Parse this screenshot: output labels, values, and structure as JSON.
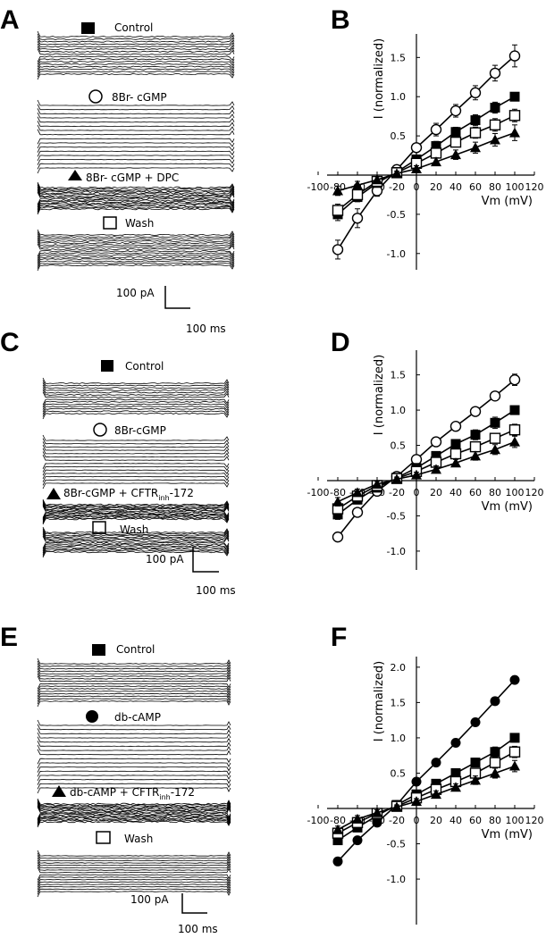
{
  "colors": {
    "ink": "#000000",
    "paper": "#ffffff"
  },
  "panels": {
    "A": {
      "letter": "A",
      "conditions": [
        {
          "label": "Control",
          "marker": "square-filled"
        },
        {
          "label": "8Br- cGMP",
          "marker": "circle-open"
        },
        {
          "label": "8Br- cGMP + DPC",
          "marker": "triangle-filled"
        },
        {
          "label": "Wash",
          "marker": "square-open"
        }
      ],
      "scale_bar": {
        "y_label": "100 pA",
        "x_label": "100 ms"
      }
    },
    "C": {
      "letter": "C",
      "conditions": [
        {
          "label": "Control",
          "marker": "square-filled"
        },
        {
          "label": "8Br-cGMP",
          "marker": "circle-open"
        },
        {
          "label": "8Br-cGMP + CFTR",
          "label_sub": "inh",
          "label_tail": "-172",
          "marker": "triangle-filled"
        },
        {
          "label": "Wash",
          "marker": "square-open"
        }
      ],
      "scale_bar": {
        "y_label": "100 pA",
        "x_label": "100 ms"
      }
    },
    "E": {
      "letter": "E",
      "conditions": [
        {
          "label": "Control",
          "marker": "square-filled"
        },
        {
          "label": "db-cAMP",
          "marker": "circle-filled"
        },
        {
          "label": "db-cAMP + CFTR",
          "label_sub": "inh",
          "label_tail": "-172",
          "marker": "triangle-filled"
        },
        {
          "label": "Wash",
          "marker": "square-open"
        }
      ],
      "scale_bar": {
        "y_label": "100 pA",
        "x_label": "100 ms"
      }
    }
  },
  "chart_data": [
    {
      "panel": "B",
      "type": "line",
      "xlabel": "Vm (mV)",
      "ylabel": "I (normalized)",
      "xticks": [
        -100,
        -80,
        -60,
        -40,
        -20,
        0,
        20,
        40,
        60,
        80,
        100,
        120
      ],
      "yticks": [
        -1.0,
        -0.5,
        0,
        0.5,
        1.0,
        1.5
      ],
      "xlim": [
        -100,
        120
      ],
      "ylim": [
        -1.35,
        1.8
      ],
      "x": [
        -80,
        -60,
        -40,
        -20,
        0,
        20,
        40,
        60,
        80,
        100
      ],
      "series": [
        {
          "marker": "circle-open",
          "values": [
            -0.95,
            -0.55,
            -0.2,
            0.07,
            0.35,
            0.58,
            0.82,
            1.05,
            1.3,
            1.52
          ],
          "errors": [
            0.12,
            0.12,
            0.07,
            0.04,
            0.05,
            0.08,
            0.08,
            0.09,
            0.1,
            0.14
          ]
        },
        {
          "marker": "square-filled",
          "values": [
            -0.5,
            -0.28,
            -0.1,
            0.04,
            0.2,
            0.37,
            0.55,
            0.7,
            0.86,
            1.0
          ],
          "errors": [
            0.08,
            0.06,
            0.04,
            0.03,
            0.05,
            0.06,
            0.06,
            0.07,
            0.07,
            0.05
          ]
        },
        {
          "marker": "square-open",
          "values": [
            -0.45,
            -0.25,
            -0.08,
            0.03,
            0.15,
            0.28,
            0.42,
            0.54,
            0.64,
            0.76
          ],
          "errors": [
            0.08,
            0.06,
            0.04,
            0.03,
            0.05,
            0.06,
            0.06,
            0.07,
            0.08,
            0.08
          ]
        },
        {
          "marker": "triangle-filled",
          "values": [
            -0.2,
            -0.13,
            -0.06,
            0.02,
            0.08,
            0.17,
            0.26,
            0.35,
            0.45,
            0.54
          ],
          "errors": [
            0.06,
            0.05,
            0.04,
            0.03,
            0.04,
            0.05,
            0.06,
            0.07,
            0.08,
            0.1
          ]
        }
      ]
    },
    {
      "panel": "D",
      "type": "line",
      "xlabel": "Vm (mV)",
      "ylabel": "I (normalized)",
      "xticks": [
        -100,
        -80,
        -60,
        -40,
        -20,
        0,
        20,
        40,
        60,
        80,
        100,
        120
      ],
      "yticks": [
        -1.0,
        -0.5,
        0,
        0.5,
        1.0,
        1.5
      ],
      "xlim": [
        -100,
        120
      ],
      "ylim": [
        -1.25,
        1.85
      ],
      "x": [
        -80,
        -60,
        -40,
        -20,
        0,
        20,
        40,
        60,
        80,
        100
      ],
      "series": [
        {
          "marker": "circle-open",
          "values": [
            -0.8,
            -0.45,
            -0.15,
            0.06,
            0.3,
            0.55,
            0.77,
            0.98,
            1.2,
            1.43
          ],
          "errors": [
            0.05,
            0.05,
            0.04,
            0.03,
            0.04,
            0.05,
            0.05,
            0.05,
            0.06,
            0.08
          ]
        },
        {
          "marker": "square-filled",
          "values": [
            -0.48,
            -0.27,
            -0.1,
            0.04,
            0.18,
            0.35,
            0.52,
            0.65,
            0.82,
            1.0
          ],
          "errors": [
            0.07,
            0.06,
            0.04,
            0.03,
            0.04,
            0.05,
            0.06,
            0.07,
            0.08,
            0.05
          ]
        },
        {
          "marker": "square-open",
          "values": [
            -0.4,
            -0.22,
            -0.07,
            0.03,
            0.13,
            0.26,
            0.38,
            0.48,
            0.6,
            0.72
          ],
          "errors": [
            0.07,
            0.06,
            0.04,
            0.03,
            0.04,
            0.05,
            0.06,
            0.06,
            0.07,
            0.08
          ]
        },
        {
          "marker": "triangle-filled",
          "values": [
            -0.3,
            -0.17,
            -0.05,
            0.02,
            0.08,
            0.16,
            0.25,
            0.35,
            0.44,
            0.55
          ],
          "errors": [
            0.06,
            0.05,
            0.04,
            0.03,
            0.04,
            0.05,
            0.05,
            0.06,
            0.07,
            0.08
          ]
        }
      ]
    },
    {
      "panel": "F",
      "type": "line",
      "xlabel": "Vm (mV)",
      "ylabel": "I (normalized)",
      "xticks": [
        -100,
        -80,
        -60,
        -40,
        -20,
        0,
        20,
        40,
        60,
        80,
        100,
        120
      ],
      "yticks": [
        -1.0,
        -0.5,
        0,
        0.5,
        1.0,
        1.5,
        2.0
      ],
      "xlim": [
        -100,
        120
      ],
      "ylim": [
        -1.3,
        2.15
      ],
      "x": [
        -80,
        -60,
        -40,
        -20,
        0,
        20,
        40,
        60,
        80,
        100
      ],
      "series": [
        {
          "marker": "circle-filled",
          "values": [
            -0.75,
            -0.45,
            -0.2,
            0.05,
            0.38,
            0.65,
            0.93,
            1.22,
            1.52,
            1.82
          ],
          "errors": [
            0.04,
            0.04,
            0.03,
            0.03,
            0.03,
            0.03,
            0.03,
            0.03,
            0.03,
            0.04
          ]
        },
        {
          "marker": "square-filled",
          "values": [
            -0.45,
            -0.27,
            -0.1,
            0.05,
            0.2,
            0.35,
            0.5,
            0.65,
            0.8,
            1.0
          ],
          "errors": [
            0.06,
            0.05,
            0.04,
            0.03,
            0.04,
            0.05,
            0.05,
            0.06,
            0.07,
            0.06
          ]
        },
        {
          "marker": "square-open",
          "values": [
            -0.35,
            -0.2,
            -0.07,
            0.03,
            0.15,
            0.27,
            0.38,
            0.5,
            0.65,
            0.8
          ],
          "errors": [
            0.06,
            0.05,
            0.04,
            0.03,
            0.04,
            0.05,
            0.05,
            0.06,
            0.07,
            0.08
          ]
        },
        {
          "marker": "triangle-filled",
          "values": [
            -0.3,
            -0.15,
            -0.06,
            0.02,
            0.1,
            0.2,
            0.3,
            0.4,
            0.5,
            0.6
          ],
          "errors": [
            0.05,
            0.05,
            0.04,
            0.03,
            0.04,
            0.05,
            0.05,
            0.06,
            0.07,
            0.08
          ]
        }
      ]
    }
  ]
}
